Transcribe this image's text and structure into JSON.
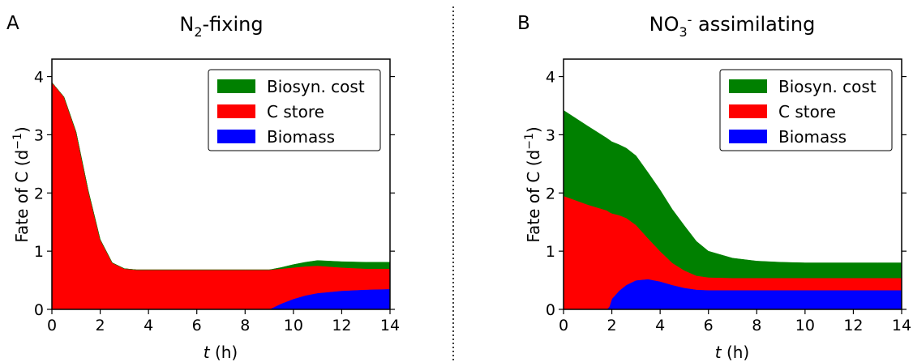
{
  "chart_data": [
    {
      "panel_letter": "A",
      "type": "area",
      "stacked": true,
      "title_parts": {
        "pre": "N",
        "script": "2",
        "post": "-fixing",
        "script_position": "sub"
      },
      "xlabel": {
        "italic": "t",
        "rest": " (h)"
      },
      "ylabel": "Fate of C (d",
      "ylabel_exp": "−1",
      "ylabel_close": ")",
      "xlim": [
        0,
        14
      ],
      "ylim": [
        0,
        4.3
      ],
      "x_ticks": [
        0,
        2,
        4,
        6,
        8,
        10,
        12,
        14
      ],
      "y_ticks": [
        0,
        1,
        2,
        3,
        4
      ],
      "legend_position": "top-right",
      "legend": [
        "Biosyn. cost",
        "C store",
        "Biomass"
      ],
      "x": [
        0,
        0.5,
        1,
        1.5,
        2,
        2.5,
        3,
        3.5,
        4,
        5,
        6,
        7,
        8,
        9,
        9.5,
        10,
        10.5,
        11,
        12,
        13,
        14
      ],
      "series": [
        {
          "name": "Biomass",
          "color": "#0000ff",
          "values": [
            0,
            0,
            0,
            0,
            0,
            0,
            0,
            0,
            0,
            0,
            0,
            0,
            0,
            0,
            0.1,
            0.18,
            0.24,
            0.28,
            0.32,
            0.34,
            0.35
          ]
        },
        {
          "name": "C store",
          "color": "#ff0000",
          "values": [
            3.9,
            3.65,
            3.05,
            2.05,
            1.2,
            0.8,
            0.7,
            0.68,
            0.68,
            0.68,
            0.68,
            0.68,
            0.68,
            0.68,
            0.6,
            0.54,
            0.5,
            0.47,
            0.4,
            0.36,
            0.35
          ]
        },
        {
          "name": "Biosyn. cost",
          "color": "#008000",
          "values": [
            0,
            0,
            0,
            0,
            0,
            0,
            0,
            0,
            0,
            0,
            0,
            0,
            0,
            0,
            0.02,
            0.05,
            0.07,
            0.09,
            0.1,
            0.11,
            0.11
          ]
        }
      ]
    },
    {
      "panel_letter": "B",
      "type": "area",
      "stacked": true,
      "title_parts": {
        "pre": "NO",
        "script": "3",
        "post": " assimilating",
        "script_position": "sub",
        "sup": "-"
      },
      "xlabel": {
        "italic": "t",
        "rest": " (h)"
      },
      "ylabel": "Fate of C (d",
      "ylabel_exp": "−1",
      "ylabel_close": ")",
      "xlim": [
        0,
        14
      ],
      "ylim": [
        0,
        4.3
      ],
      "x_ticks": [
        0,
        2,
        4,
        6,
        8,
        10,
        12,
        14
      ],
      "y_ticks": [
        0,
        1,
        2,
        3,
        4
      ],
      "legend_position": "top-right",
      "legend": [
        "Biosyn. cost",
        "C store",
        "Biomass"
      ],
      "x": [
        0,
        1,
        1.8,
        1.9,
        2,
        2.3,
        2.6,
        3,
        3.5,
        4,
        4.5,
        5,
        5.5,
        6,
        7,
        8,
        9,
        10,
        11,
        12,
        13,
        14
      ],
      "series": [
        {
          "name": "Biomass",
          "color": "#0000ff",
          "values": [
            0,
            0,
            0,
            0.05,
            0.18,
            0.32,
            0.42,
            0.5,
            0.52,
            0.48,
            0.42,
            0.37,
            0.34,
            0.33,
            0.33,
            0.33,
            0.33,
            0.33,
            0.33,
            0.33,
            0.33,
            0.33
          ]
        },
        {
          "name": "C store",
          "color": "#ff0000",
          "values": [
            1.95,
            1.8,
            1.7,
            1.62,
            1.47,
            1.3,
            1.15,
            0.95,
            0.7,
            0.52,
            0.38,
            0.3,
            0.24,
            0.22,
            0.21,
            0.21,
            0.21,
            0.21,
            0.21,
            0.21,
            0.21,
            0.21
          ]
        },
        {
          "name": "Biosyn. cost",
          "color": "#008000",
          "values": [
            1.47,
            1.35,
            1.24,
            1.24,
            1.23,
            1.21,
            1.2,
            1.19,
            1.13,
            1.05,
            0.92,
            0.77,
            0.59,
            0.45,
            0.34,
            0.29,
            0.27,
            0.26,
            0.26,
            0.26,
            0.26,
            0.26
          ]
        }
      ]
    }
  ]
}
